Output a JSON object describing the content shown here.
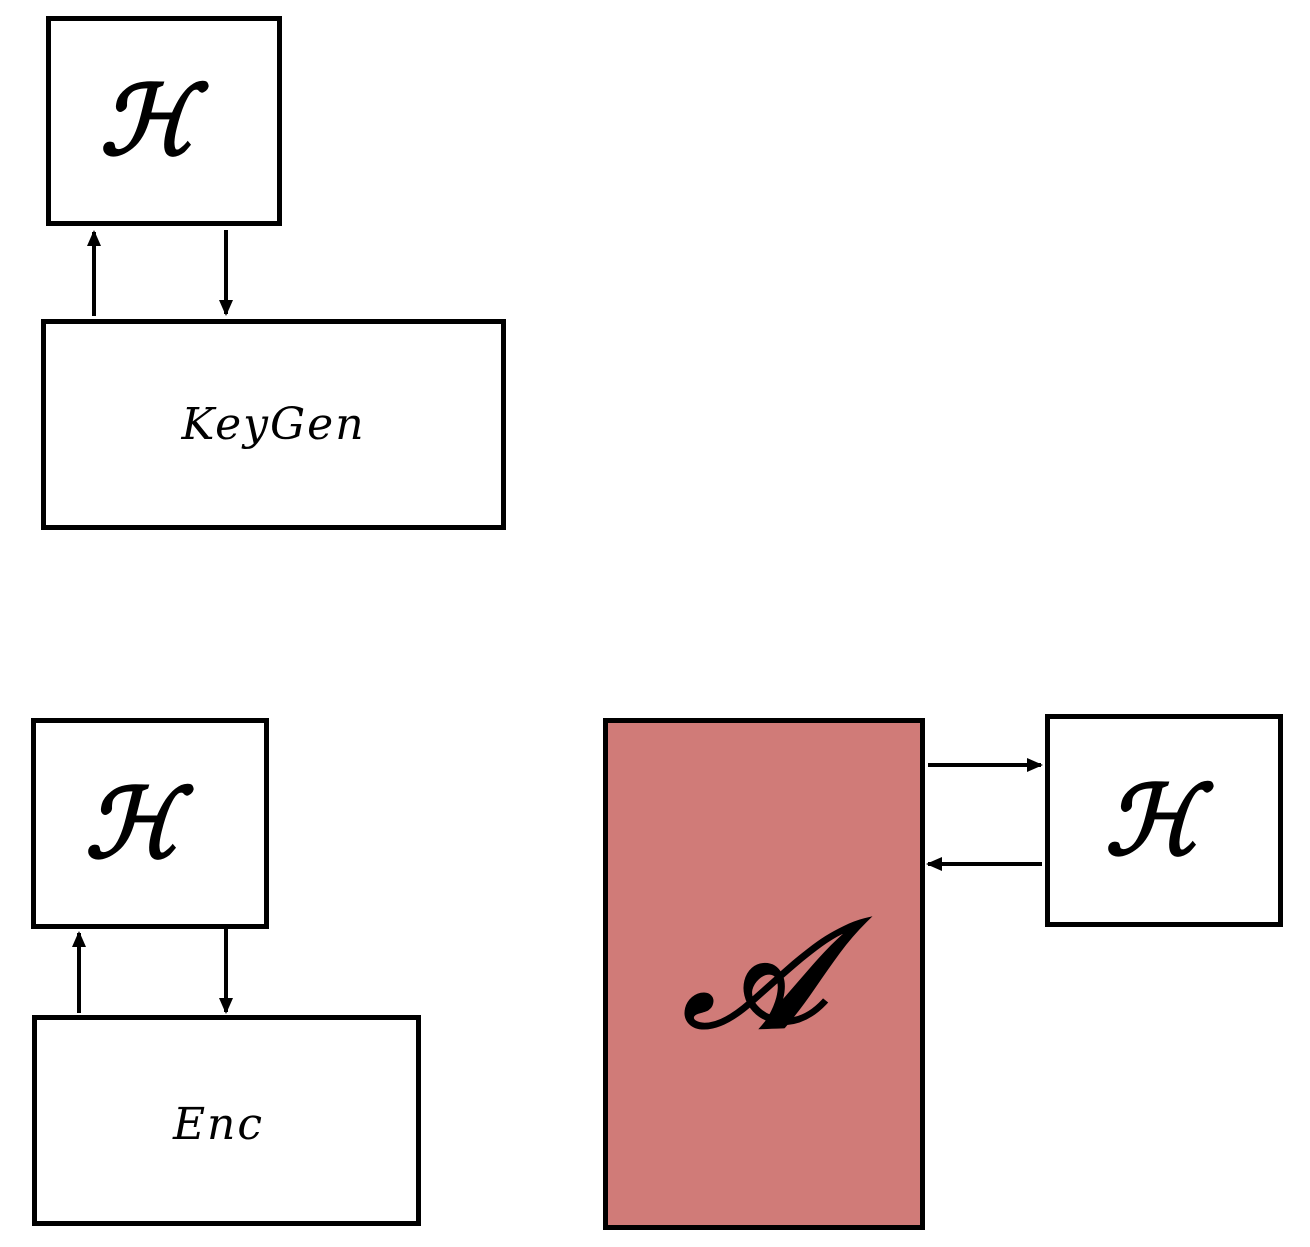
{
  "oracle_symbol": "ℋ",
  "keygen": {
    "oracle_label": "ℋ",
    "algorithm_label": "KeyGen"
  },
  "enc": {
    "oracle_label": "ℋ",
    "algorithm_label": "Enc"
  },
  "adversary": {
    "label": "𝒜",
    "oracle_label": "ℋ",
    "fill_color": "#D07B78"
  }
}
